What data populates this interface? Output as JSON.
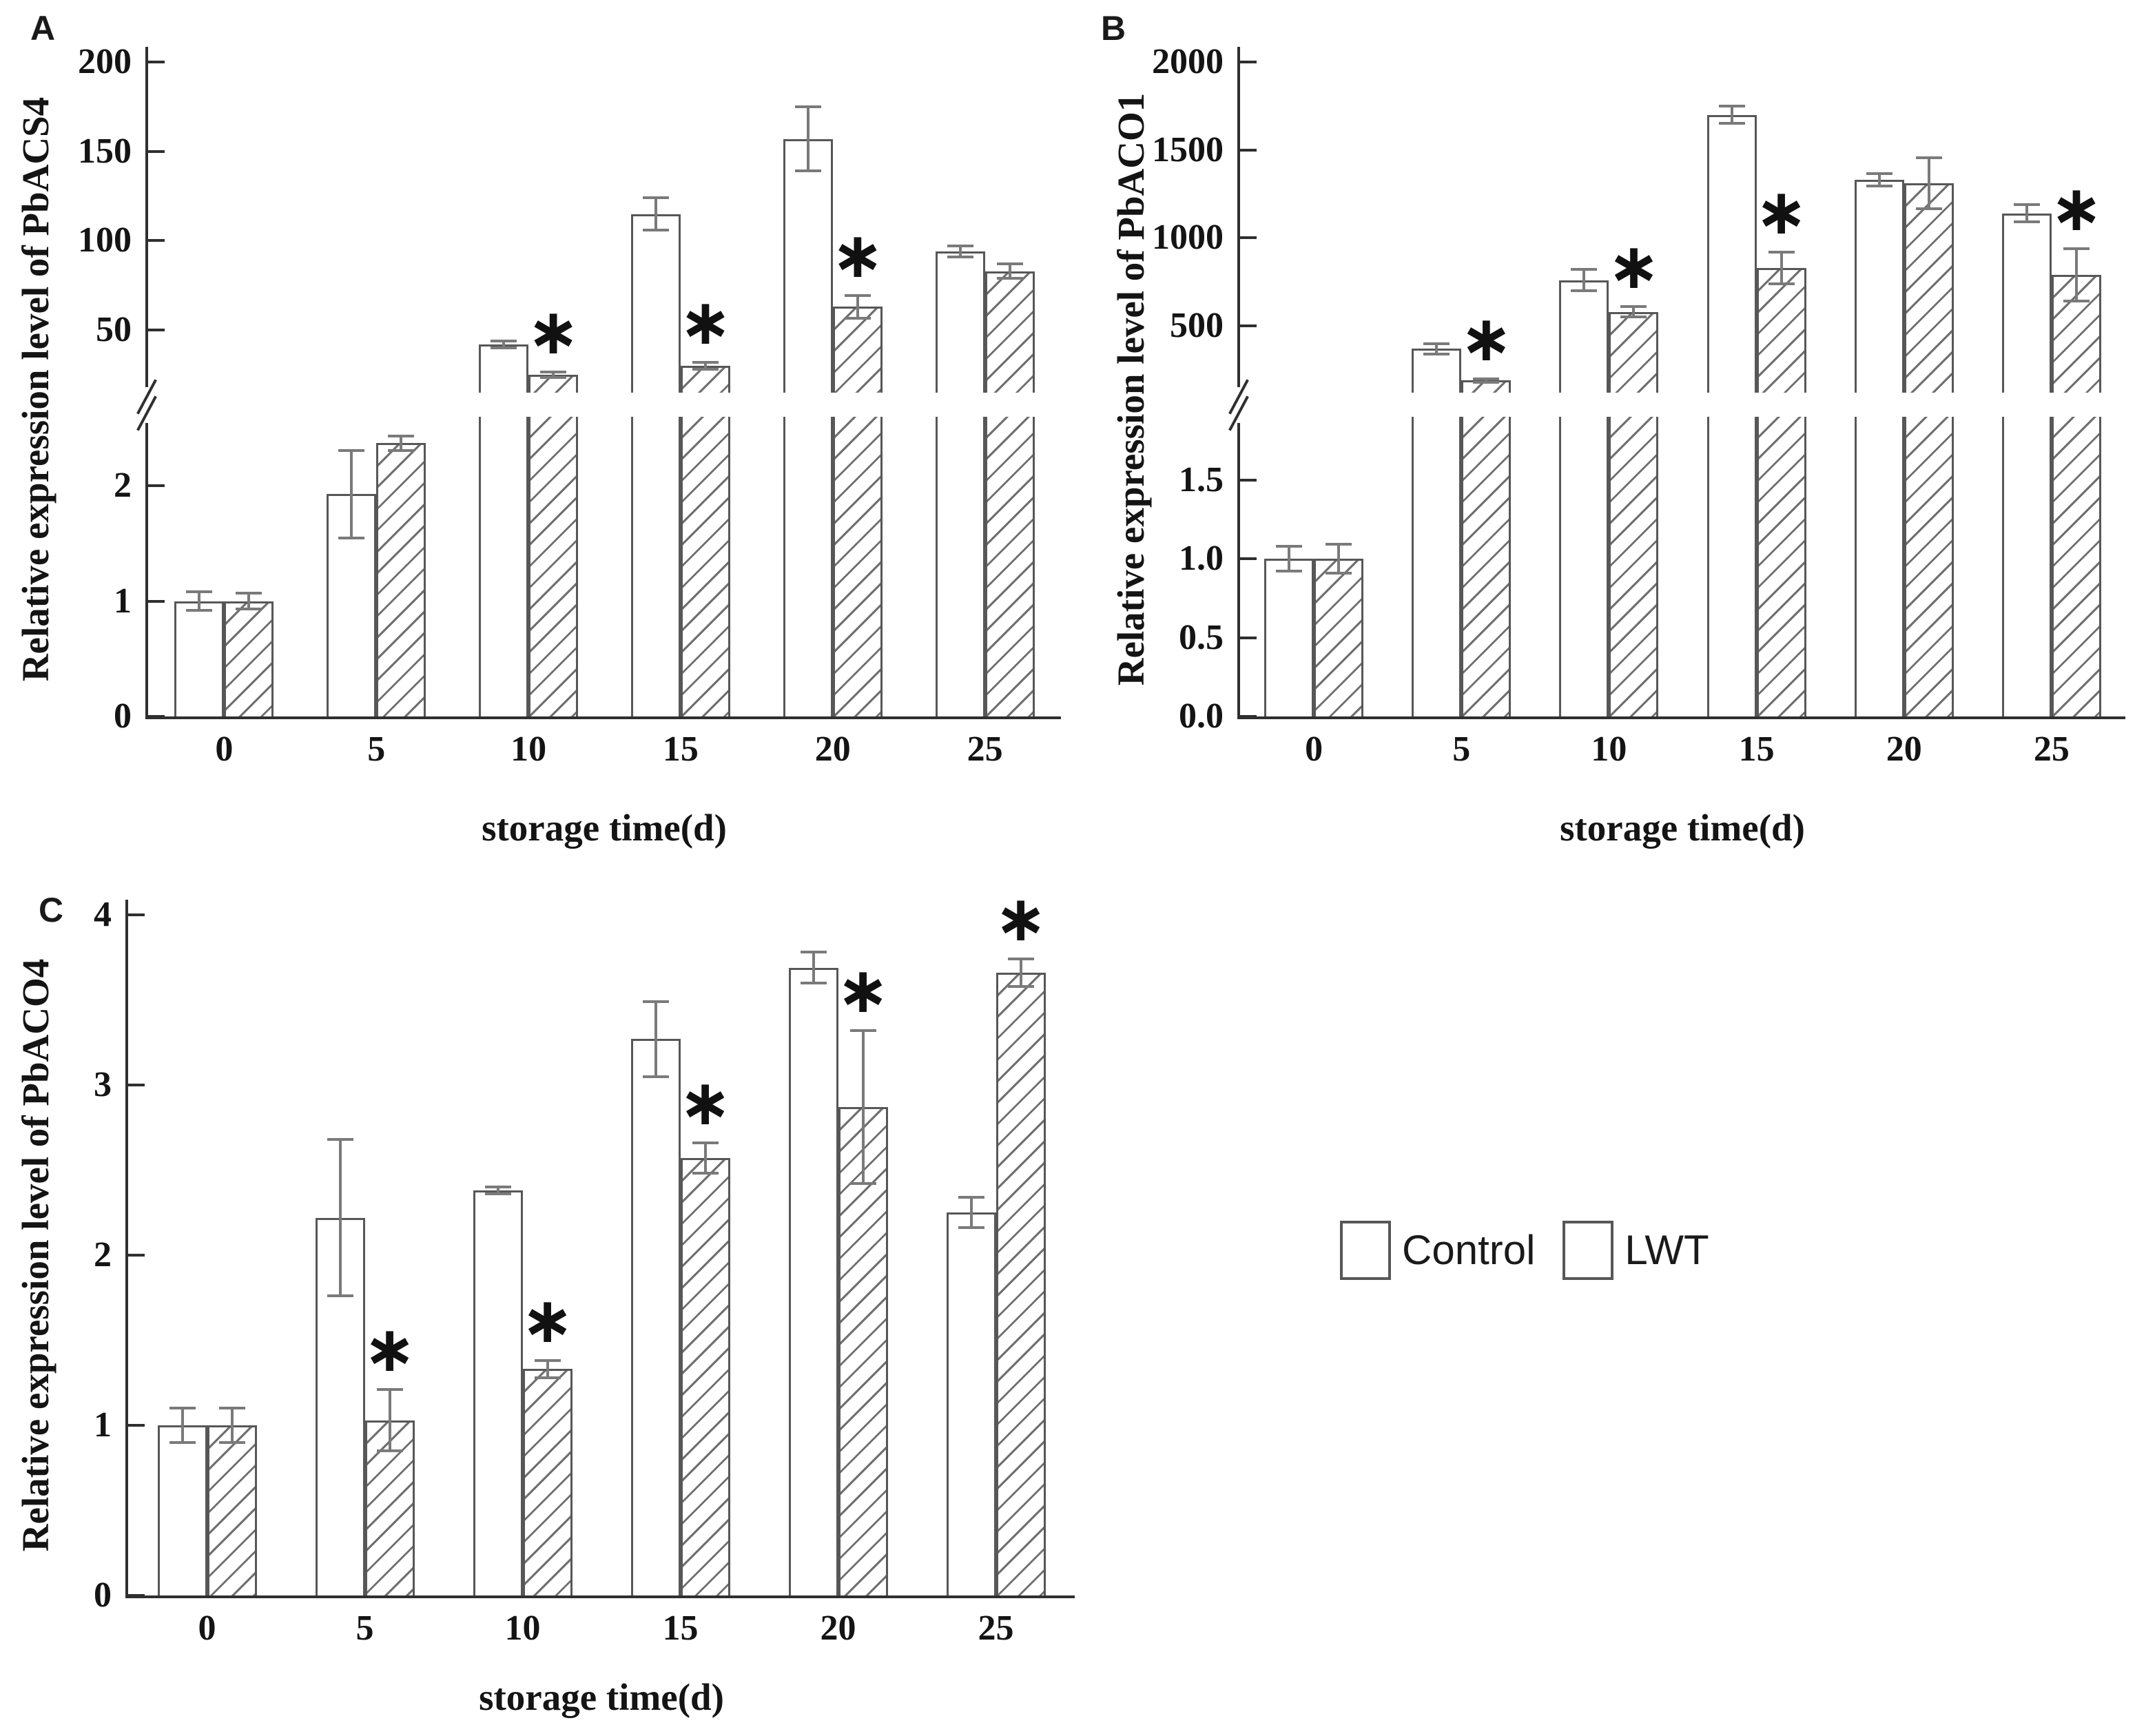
{
  "figure": {
    "background": "#ffffff",
    "text_color": "#141414",
    "axis_color": "#2f2f2f",
    "bar_fill": "#ffffff",
    "bar_border_color": "#575757",
    "error_bar_color": "#7a7a7a",
    "hatch_color": "#6f6f6f",
    "sig_marker": "∗",
    "legend": {
      "position": "bottom-right",
      "items": [
        {
          "label": "Control",
          "fill": "plain"
        },
        {
          "label": "LWT",
          "fill": "hatch"
        }
      ]
    }
  },
  "chart_data": [
    {
      "id": "A",
      "type": "bar",
      "panel_label": "A",
      "ylabel": "Relative expression level of PbACS4",
      "xlabel": "storage time(d)",
      "categories": [
        "0",
        "5",
        "10",
        "15",
        "20",
        "25"
      ],
      "axis_break": true,
      "lower_axis": {
        "max": 2.6,
        "ticks": [
          {
            "v": 0,
            "label": "0"
          },
          {
            "v": 1,
            "label": "1"
          },
          {
            "v": 2,
            "label": "2"
          }
        ]
      },
      "upper_axis": {
        "min": 15,
        "max": 200,
        "ticks": [
          {
            "v": 50,
            "label": "50"
          },
          {
            "v": 100,
            "label": "100"
          },
          {
            "v": 150,
            "label": "150"
          },
          {
            "v": 200,
            "label": "200"
          }
        ]
      },
      "series": [
        {
          "name": "Control",
          "hatch": false,
          "values": [
            1.0,
            1.93,
            42,
            115,
            157,
            94
          ],
          "errors": [
            0.08,
            0.38,
            2,
            9,
            18,
            3
          ],
          "sig": [
            false,
            false,
            false,
            false,
            false,
            false
          ]
        },
        {
          "name": "LWT",
          "hatch": true,
          "values": [
            1.0,
            2.37,
            25,
            30,
            63,
            83
          ],
          "errors": [
            0.07,
            0.06,
            1.5,
            2,
            6.5,
            4
          ],
          "sig": [
            false,
            false,
            true,
            true,
            true,
            false
          ]
        }
      ]
    },
    {
      "id": "B",
      "type": "bar",
      "panel_label": "B",
      "ylabel": "Relative expression level of PbACO1",
      "xlabel": "storage time(d)",
      "categories": [
        "0",
        "5",
        "10",
        "15",
        "20",
        "25"
      ],
      "axis_break": true,
      "lower_axis": {
        "max": 1.9,
        "ticks": [
          {
            "v": 0,
            "label": "0.0"
          },
          {
            "v": 0.5,
            "label": "0.5"
          },
          {
            "v": 1.0,
            "label": "1.0"
          },
          {
            "v": 1.5,
            "label": "1.5"
          }
        ]
      },
      "upper_axis": {
        "min": 120,
        "max": 2000,
        "ticks": [
          {
            "v": 500,
            "label": "500"
          },
          {
            "v": 1000,
            "label": "1000"
          },
          {
            "v": 1500,
            "label": "1500"
          },
          {
            "v": 2000,
            "label": "2000"
          }
        ]
      },
      "series": [
        {
          "name": "Control",
          "hatch": false,
          "values": [
            1.0,
            370,
            760,
            1700,
            1330,
            1140
          ],
          "errors": [
            0.08,
            30,
            60,
            50,
            35,
            50
          ],
          "sig": [
            false,
            false,
            false,
            false,
            false,
            false
          ]
        },
        {
          "name": "LWT",
          "hatch": true,
          "values": [
            1.0,
            190,
            580,
            830,
            1310,
            790
          ],
          "errors": [
            0.09,
            10,
            30,
            90,
            145,
            150
          ],
          "sig": [
            false,
            true,
            true,
            true,
            false,
            true
          ]
        }
      ]
    },
    {
      "id": "C",
      "type": "bar",
      "panel_label": "C",
      "ylabel": "Relative expression level of PbACO4",
      "xlabel": "storage time(d)",
      "categories": [
        "0",
        "5",
        "10",
        "15",
        "20",
        "25"
      ],
      "axis_break": false,
      "axis": {
        "max": 4,
        "ticks": [
          {
            "v": 0,
            "label": "0"
          },
          {
            "v": 1,
            "label": "1"
          },
          {
            "v": 2,
            "label": "2"
          },
          {
            "v": 3,
            "label": "3"
          },
          {
            "v": 4,
            "label": "4"
          }
        ]
      },
      "series": [
        {
          "name": "Control",
          "hatch": false,
          "values": [
            1.0,
            2.22,
            2.38,
            3.27,
            3.69,
            2.25
          ],
          "errors": [
            0.1,
            0.46,
            0.02,
            0.22,
            0.09,
            0.09
          ],
          "sig": [
            false,
            false,
            false,
            false,
            false,
            false
          ]
        },
        {
          "name": "LWT",
          "hatch": true,
          "values": [
            1.0,
            1.03,
            1.33,
            2.57,
            2.87,
            3.66
          ],
          "errors": [
            0.1,
            0.18,
            0.05,
            0.09,
            0.45,
            0.08
          ],
          "sig": [
            false,
            true,
            true,
            true,
            true,
            true
          ]
        }
      ]
    }
  ]
}
